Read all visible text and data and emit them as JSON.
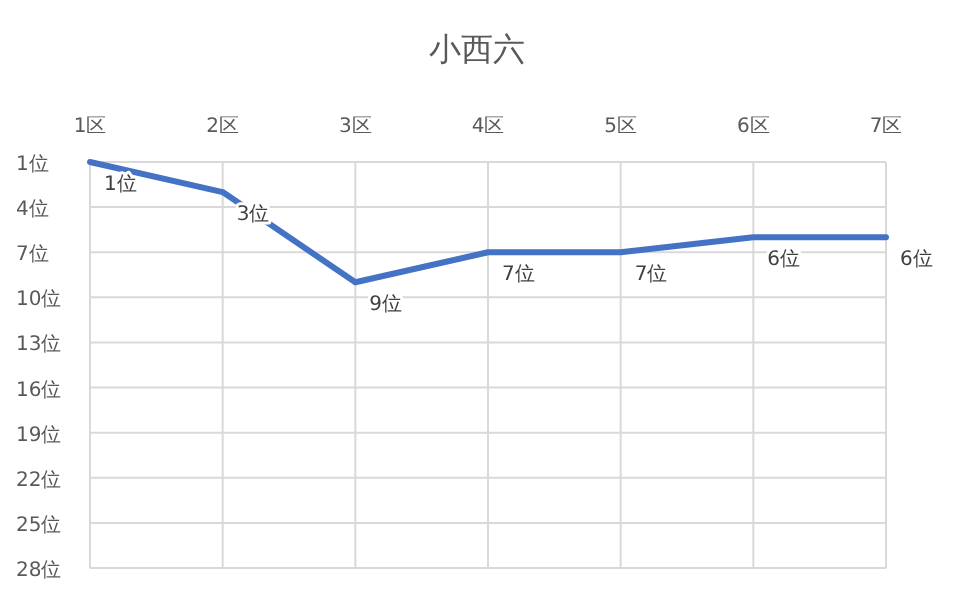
{
  "chart_data": {
    "type": "line",
    "title": "小西六",
    "categories": [
      "1区",
      "2区",
      "3区",
      "4区",
      "5区",
      "6区",
      "7区"
    ],
    "series": [
      {
        "color": "#4472c4",
        "values": [
          1,
          3,
          9,
          7,
          7,
          6,
          6
        ],
        "value_labels": [
          "1位",
          "3位",
          "9位",
          "7位",
          "7位",
          "6位",
          "6位"
        ]
      }
    ],
    "ylim": [
      28,
      1
    ],
    "yticks": [
      {
        "value": 1,
        "label": "1位"
      },
      {
        "value": 4,
        "label": "4位"
      },
      {
        "value": 7,
        "label": "7位"
      },
      {
        "value": 10,
        "label": "10位"
      },
      {
        "value": 13,
        "label": "13位"
      },
      {
        "value": 16,
        "label": "16位"
      },
      {
        "value": 19,
        "label": "19位"
      },
      {
        "value": 22,
        "label": "22位"
      },
      {
        "value": 25,
        "label": "25位"
      },
      {
        "value": 28,
        "label": "28位"
      }
    ],
    "grid": true,
    "marker": "none",
    "line_style": "solid"
  }
}
